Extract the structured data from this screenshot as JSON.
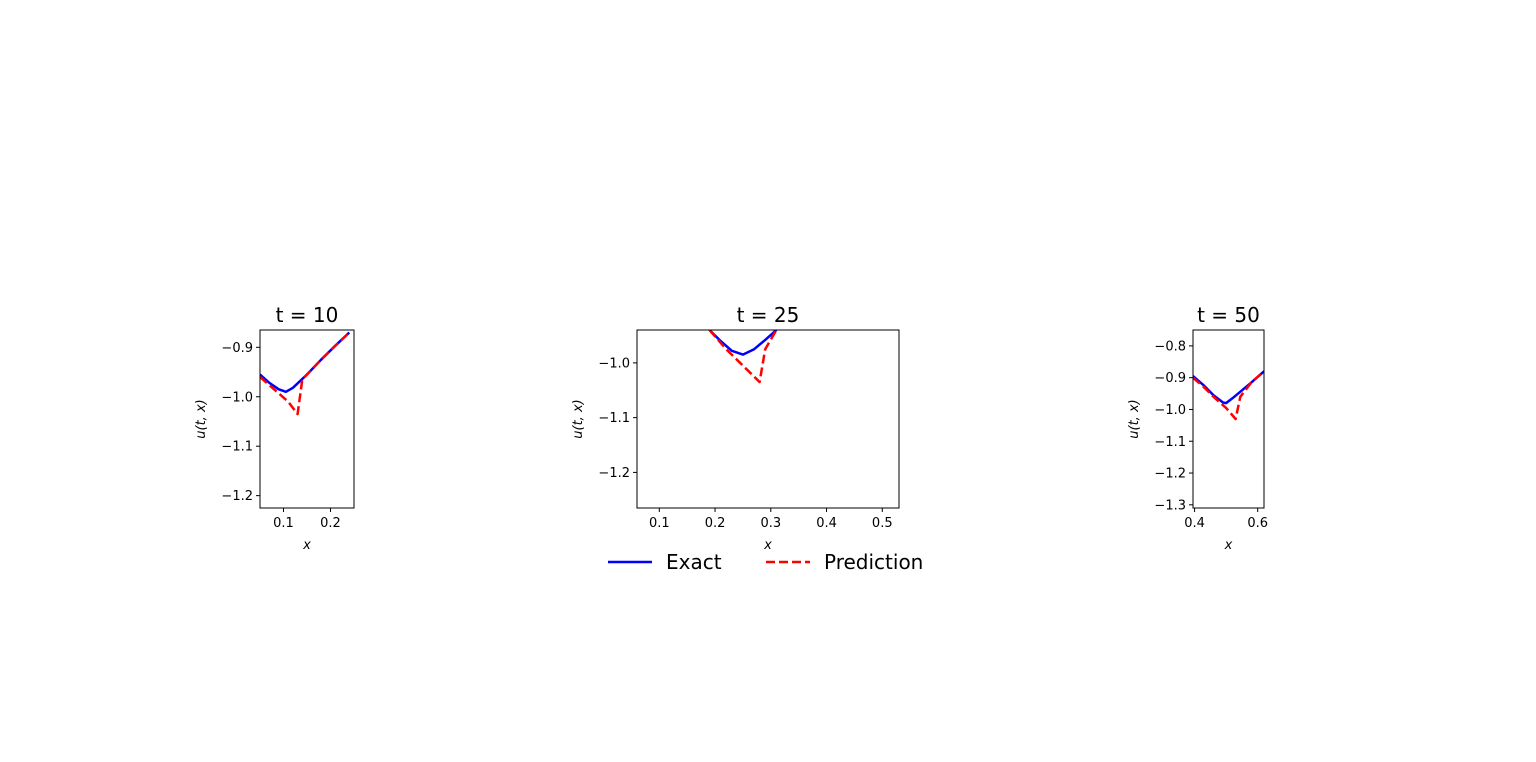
{
  "legend": {
    "items": [
      {
        "label": "Exact",
        "color": "#0000ff",
        "style": "solid"
      },
      {
        "label": "Prediction",
        "color": "#ff0000",
        "style": "dashed"
      }
    ]
  },
  "chart_data": [
    {
      "type": "line",
      "title": "t = 10",
      "xlabel": "x",
      "ylabel": "u(t, x)",
      "xlim": [
        0.05,
        0.25
      ],
      "ylim": [
        -1.225,
        -0.865
      ],
      "xticks": [
        0.1,
        0.2
      ],
      "xtick_labels": [
        "0.1",
        "0.2"
      ],
      "yticks": [
        -0.9,
        -1.0,
        -1.1,
        -1.2
      ],
      "ytick_labels": [
        "−0.9",
        "−1.0",
        "−1.1",
        "−1.2"
      ],
      "series": [
        {
          "name": "Exact",
          "color": "#0000ff",
          "style": "solid",
          "x": [
            0.05,
            0.07,
            0.09,
            0.105,
            0.12,
            0.15,
            0.18,
            0.21,
            0.24
          ],
          "y": [
            -0.955,
            -0.972,
            -0.985,
            -0.99,
            -0.982,
            -0.955,
            -0.925,
            -0.897,
            -0.87
          ]
        },
        {
          "name": "Prediction",
          "color": "#ff0000",
          "style": "dashed",
          "x": [
            0.05,
            0.08,
            0.11,
            0.13,
            0.14,
            0.15,
            0.18,
            0.21,
            0.24
          ],
          "y": [
            -0.96,
            -0.985,
            -1.01,
            -1.035,
            -0.965,
            -0.955,
            -0.925,
            -0.897,
            -0.87
          ]
        }
      ]
    },
    {
      "type": "line",
      "title": "t = 25",
      "xlabel": "x",
      "ylabel": "u(t, x)",
      "xlim": [
        0.06,
        0.53
      ],
      "ylim": [
        -1.265,
        -0.94
      ],
      "xticks": [
        0.1,
        0.2,
        0.3,
        0.4,
        0.5
      ],
      "xtick_labels": [
        "0.1",
        "0.2",
        "0.3",
        "0.4",
        "0.5"
      ],
      "yticks": [
        -1.0,
        -1.1,
        -1.2
      ],
      "ytick_labels": [
        "−1.0",
        "−1.1",
        "−1.2"
      ],
      "series": [
        {
          "name": "Exact",
          "color": "#0000ff",
          "style": "solid",
          "x": [
            0.19,
            0.21,
            0.23,
            0.25,
            0.27,
            0.29,
            0.31
          ],
          "y": [
            -0.94,
            -0.96,
            -0.978,
            -0.985,
            -0.975,
            -0.958,
            -0.94
          ]
        },
        {
          "name": "Prediction",
          "color": "#ff0000",
          "style": "dashed",
          "x": [
            0.19,
            0.22,
            0.25,
            0.28,
            0.29,
            0.31
          ],
          "y": [
            -0.94,
            -0.975,
            -1.005,
            -1.035,
            -0.975,
            -0.94
          ]
        }
      ]
    },
    {
      "type": "line",
      "title": "t = 50",
      "xlabel": "x",
      "ylabel": "u(t, x)",
      "xlim": [
        0.395,
        0.62
      ],
      "ylim": [
        -1.31,
        -0.75
      ],
      "xticks": [
        0.4,
        0.6
      ],
      "xtick_labels": [
        "0.4",
        "0.6"
      ],
      "yticks": [
        -0.8,
        -0.9,
        -1.0,
        -1.1,
        -1.2,
        -1.3
      ],
      "ytick_labels": [
        "−0.8",
        "−0.9",
        "−1.0",
        "−1.1",
        "−1.2",
        "−1.3"
      ],
      "series": [
        {
          "name": "Exact",
          "color": "#0000ff",
          "style": "solid",
          "x": [
            0.395,
            0.43,
            0.46,
            0.49,
            0.5,
            0.52,
            0.55,
            0.58,
            0.62
          ],
          "y": [
            -0.895,
            -0.925,
            -0.955,
            -0.978,
            -0.98,
            -0.965,
            -0.94,
            -0.915,
            -0.88
          ]
        },
        {
          "name": "Prediction",
          "color": "#ff0000",
          "style": "dashed",
          "x": [
            0.395,
            0.43,
            0.46,
            0.5,
            0.53,
            0.545,
            0.58,
            0.62
          ],
          "y": [
            -0.9,
            -0.93,
            -0.96,
            -0.995,
            -1.03,
            -0.96,
            -0.915,
            -0.88
          ]
        }
      ]
    }
  ]
}
